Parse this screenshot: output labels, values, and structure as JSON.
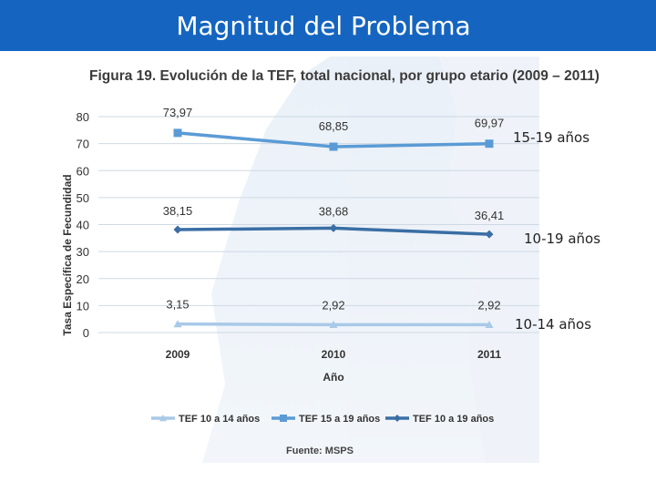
{
  "slide": {
    "title": "Magnitud del Problema"
  },
  "chart_data": {
    "type": "line",
    "title": "Figura 19. Evolución de la TEF, total nacional, por grupo etario (2009 – 2011)",
    "xlabel": "Año",
    "ylabel": "Tasa Específica de Fecundidad",
    "categories": [
      "2009",
      "2010",
      "2011"
    ],
    "ylim": [
      0,
      80
    ],
    "yticks": [
      0,
      10,
      20,
      30,
      40,
      50,
      60,
      70,
      80
    ],
    "grid": true,
    "legend_position": "bottom",
    "series": [
      {
        "name": "TEF 10 a 14 años",
        "values": [
          3.15,
          2.92,
          2.92
        ],
        "labels": [
          "3,15",
          "2,92",
          "2,92"
        ],
        "color": "#a9c9e8",
        "marker": "triangle"
      },
      {
        "name": "TEF 15 a 19 años",
        "values": [
          73.97,
          68.85,
          69.97
        ],
        "labels": [
          "73,97",
          "68,85",
          "69,97"
        ],
        "color": "#5b9bd5",
        "marker": "square"
      },
      {
        "name": "TEF 10 a 19 años",
        "values": [
          38.15,
          38.68,
          36.41
        ],
        "labels": [
          "38,15",
          "38,68",
          "36,41"
        ],
        "color": "#3a6ea5",
        "marker": "diamond"
      }
    ],
    "source": "Fuente: MSPS"
  },
  "annotations": {
    "a15_19": "15-19 años",
    "a10_19": "10-19 años",
    "a10_14": "10-14 años"
  }
}
